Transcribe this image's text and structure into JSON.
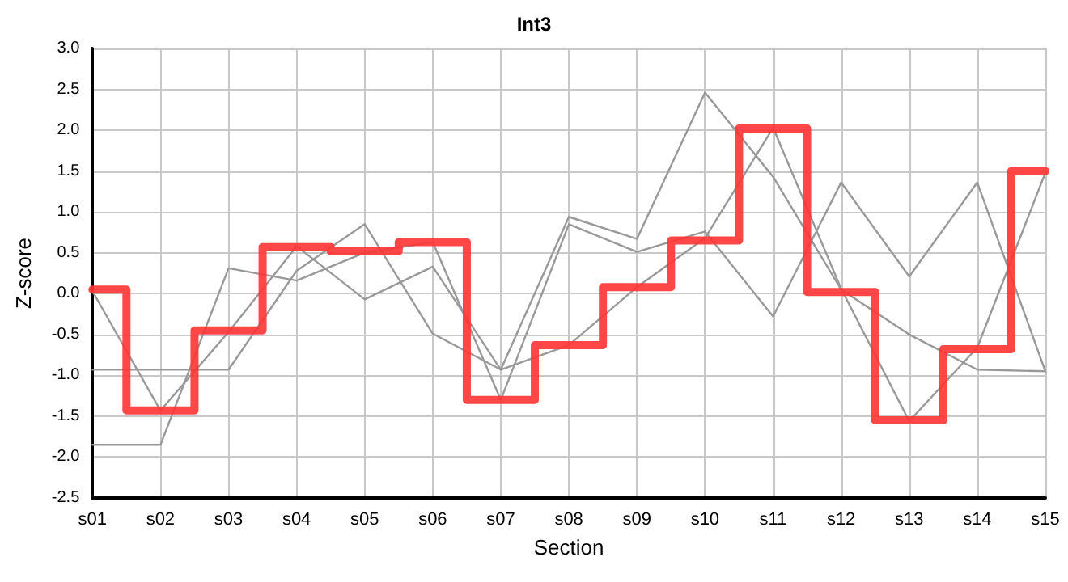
{
  "chart_data": {
    "type": "line",
    "title": "Int3",
    "xlabel": "Section",
    "ylabel": "Z-score",
    "categories": [
      "s01",
      "s02",
      "s03",
      "s04",
      "s05",
      "s06",
      "s07",
      "s08",
      "s09",
      "s10",
      "s11",
      "s12",
      "s13",
      "s14",
      "s15"
    ],
    "series": [
      {
        "color": "#999999",
        "values": [
          -0.93,
          -0.93,
          -0.93,
          0.28,
          0.85,
          -0.49,
          -0.93,
          0.94,
          0.67,
          2.46,
          1.43,
          0.05,
          -0.5,
          -0.93,
          -0.95
        ]
      },
      {
        "color": "#999999",
        "values": [
          -1.85,
          -1.85,
          0.31,
          0.16,
          0.5,
          0.63,
          -1.3,
          0.85,
          0.51,
          0.76,
          -0.28,
          1.36,
          0.21,
          1.36,
          -0.95
        ]
      },
      {
        "color": "#999999",
        "values": [
          0.03,
          -1.43,
          -0.47,
          0.58,
          -0.07,
          0.33,
          -0.93,
          -0.63,
          0.08,
          0.68,
          2.03,
          0.06,
          -1.56,
          -0.66,
          1.48
        ]
      },
      {
        "type": "step",
        "color": "#ff3333",
        "values": [
          0.05,
          -1.43,
          -0.45,
          0.57,
          0.52,
          0.63,
          -1.3,
          -0.63,
          0.08,
          0.65,
          2.02,
          0.02,
          -1.55,
          -0.68,
          1.5
        ]
      }
    ],
    "ylim": [
      -2.5,
      3
    ],
    "yticks": [
      {
        "value": -2.5,
        "label": "-2.5"
      },
      {
        "value": -2,
        "label": "-2.0"
      },
      {
        "value": -1.5,
        "label": "-1.5"
      },
      {
        "value": -1,
        "label": "-1.0"
      },
      {
        "value": -0.5,
        "label": "-0.5"
      },
      {
        "value": 0,
        "label": "0.0"
      },
      {
        "value": 0.5,
        "label": "0.5"
      },
      {
        "value": 1,
        "label": "1.0"
      },
      {
        "value": 1.5,
        "label": "1.5"
      },
      {
        "value": 2,
        "label": "2.0"
      },
      {
        "value": 2.5,
        "label": "2.5"
      },
      {
        "value": 3,
        "label": "3.0"
      }
    ],
    "grid": true,
    "marker": "none",
    "line_style": "solid"
  }
}
